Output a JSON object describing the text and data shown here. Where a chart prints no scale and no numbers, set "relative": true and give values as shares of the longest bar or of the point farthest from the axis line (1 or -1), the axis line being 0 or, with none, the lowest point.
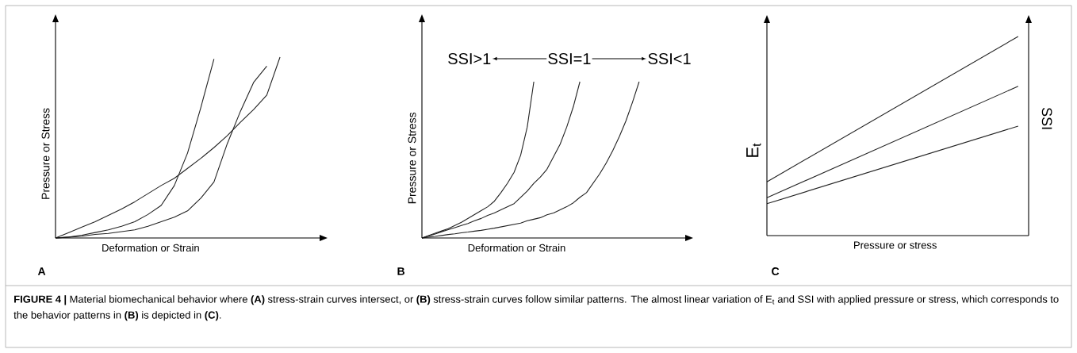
{
  "chart_data": [
    {
      "type": "line",
      "title": "A",
      "xlabel": "Deformation or Strain",
      "ylabel": "Pressure or Stress",
      "relative": true,
      "categories": [
        null,
        null,
        null,
        null,
        null,
        null,
        null,
        null,
        null,
        null,
        null,
        null,
        null,
        null,
        null,
        null,
        null,
        null
      ],
      "series": [
        {
          "color": "#222222",
          "values": [
            0,
            0.005,
            0.015,
            0.03,
            0.045,
            0.065,
            0.09,
            0.13,
            0.18,
            0.29,
            0.47,
            0.72,
            0.99,
            null,
            null,
            null,
            null,
            null
          ]
        },
        {
          "color": "#222222",
          "values": [
            0,
            0.005,
            0.01,
            0.02,
            0.025,
            0.035,
            0.045,
            0.065,
            0.09,
            0.115,
            0.15,
            0.22,
            0.31,
            0.52,
            0.7,
            0.86,
            0.95,
            null
          ]
        },
        {
          "color": "#222222",
          "values": [
            0,
            0.03,
            0.06,
            0.09,
            0.125,
            0.16,
            0.2,
            0.245,
            0.29,
            0.33,
            0.385,
            0.44,
            0.5,
            0.565,
            0.64,
            0.71,
            0.79,
            1.0
          ]
        }
      ]
    },
    {
      "type": "line",
      "title": "B",
      "xlabel": "Deformation or Strain",
      "ylabel": "Pressure or Stress",
      "relative": true,
      "annotations": [
        "SSI>1",
        "SSI=1",
        "SSI<1"
      ],
      "categories": [
        null,
        null,
        null,
        null,
        null,
        null,
        null,
        null,
        null,
        null,
        null,
        null,
        null,
        null,
        null,
        null,
        null,
        null,
        null,
        null,
        null,
        null,
        null,
        null,
        null,
        null,
        null,
        null,
        null,
        null,
        null,
        null,
        null,
        null
      ],
      "series": [
        {
          "color": "#222222",
          "values": [
            0,
            0.015,
            0.03,
            0.045,
            0.06,
            0.08,
            0.1,
            0.125,
            0.15,
            0.175,
            0.2,
            0.235,
            0.29,
            0.35,
            0.42,
            0.53,
            0.71,
            1.0,
            null,
            null,
            null,
            null,
            null,
            null,
            null,
            null,
            null,
            null,
            null,
            null,
            null,
            null,
            null,
            null
          ]
        },
        {
          "color": "#222222",
          "values": [
            0,
            0.012,
            0.025,
            0.04,
            0.053,
            0.066,
            0.08,
            0.093,
            0.11,
            0.125,
            0.145,
            0.16,
            0.18,
            0.2,
            0.22,
            0.26,
            0.3,
            0.35,
            0.39,
            0.44,
            0.52,
            0.6,
            0.71,
            0.84,
            1.0,
            null,
            null,
            null,
            null,
            null,
            null,
            null,
            null,
            null
          ]
        },
        {
          "color": "#222222",
          "values": [
            0,
            0.005,
            0.01,
            0.016,
            0.022,
            0.027,
            0.033,
            0.038,
            0.044,
            0.049,
            0.056,
            0.063,
            0.071,
            0.079,
            0.087,
            0.095,
            0.11,
            0.12,
            0.13,
            0.148,
            0.16,
            0.18,
            0.2,
            0.225,
            0.26,
            0.29,
            0.35,
            0.41,
            0.48,
            0.56,
            0.65,
            0.75,
            0.87,
            1.0
          ]
        }
      ]
    },
    {
      "type": "line",
      "title": "C",
      "xlabel": "Pressure or stress",
      "ylabel": "E$_{t}$",
      "y2label": "SSI",
      "relative": true,
      "annotations": [
        "**FIGURE 4 |** Material biomechanical behavior where **(A)** stress-strain curves intersect, or **(B)** stress-strain curves follow similar patterns. The almost linear variation of E$_{t}$ and SSI with applied pressure or stress, which corresponds to the behavior patterns in **(B)** is depicted in **(C)**."
      ],
      "categories": [
        null,
        null
      ],
      "series": [
        {
          "color": "#222222",
          "values": [
            0.27,
            1.0
          ]
        },
        {
          "color": "#222222",
          "values": [
            0.19,
            0.75
          ]
        },
        {
          "color": "#222222",
          "values": [
            0.16,
            0.55
          ]
        }
      ]
    }
  ]
}
